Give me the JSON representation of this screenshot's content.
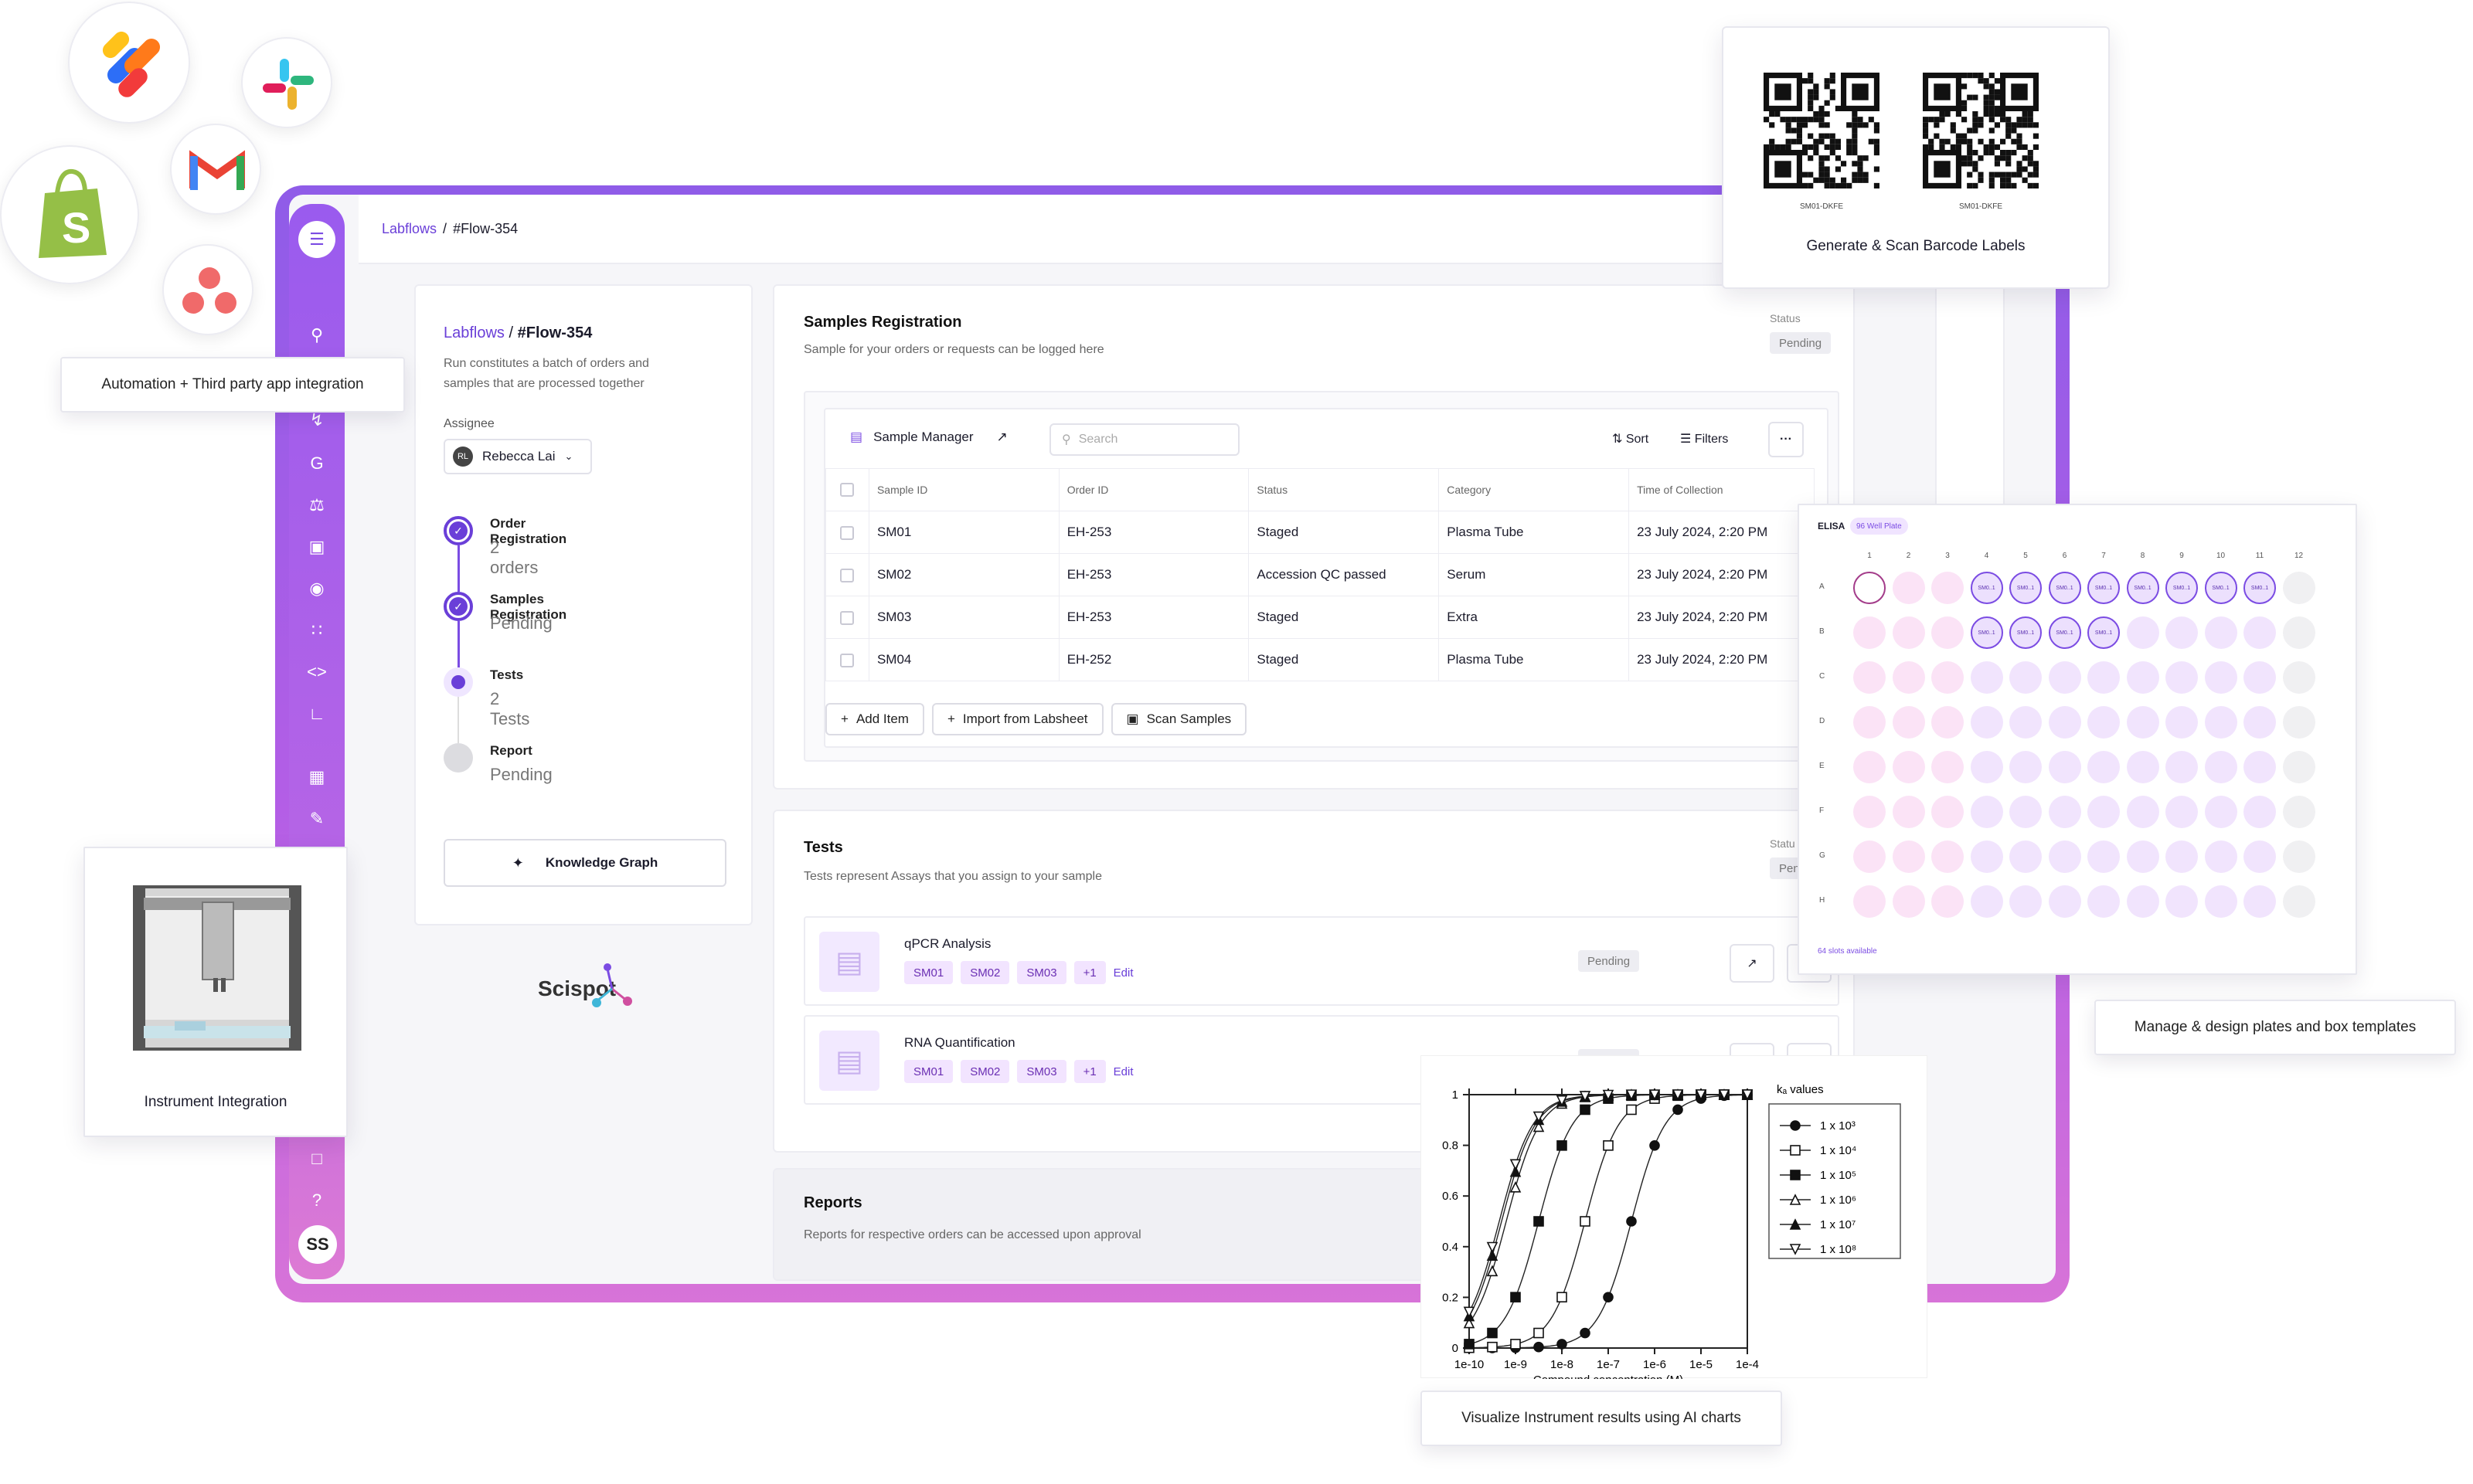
{
  "breadcrumb": {
    "root": "Labflows",
    "sep": "/",
    "current": "#Flow-354"
  },
  "flow": {
    "root": "Labflows",
    "sep": "/",
    "title": "#Flow-354",
    "description_1": "Run constitutes a batch of orders and",
    "description_2": "samples that are processed together",
    "assignee_label": "Assignee",
    "assignee_initials": "RL",
    "assignee_name": "Rebecca Lai",
    "steps": [
      {
        "title": "Order Registration",
        "status": "2 orders"
      },
      {
        "title": "Samples Registration",
        "status": "Pending"
      },
      {
        "title": "Tests",
        "status": "2 Tests"
      },
      {
        "title": "Report",
        "status": "Pending"
      }
    ],
    "knowledge_graph": "Knowledge Graph",
    "brand": "Scispot"
  },
  "samples": {
    "title": "Samples Registration",
    "subtitle": "Sample for your orders or requests can be logged here",
    "status_label": "Status",
    "status_value": "Pending",
    "manager_label": "Sample Manager",
    "search_placeholder": "Search",
    "sort": "Sort",
    "filters": "Filters",
    "more": "···",
    "columns": [
      "Sample ID",
      "Order ID",
      "Status",
      "Category",
      "Time of Collection"
    ],
    "rows": [
      [
        "SM01",
        "EH-253",
        "Staged",
        "Plasma Tube",
        "23 July 2024, 2:20 PM"
      ],
      [
        "SM02",
        "EH-253",
        "Accession QC passed",
        "Serum",
        "23 July 2024, 2:20 PM"
      ],
      [
        "SM03",
        "EH-253",
        "Staged",
        "Extra",
        "23 July 2024, 2:20 PM"
      ],
      [
        "SM04",
        "EH-252",
        "Staged",
        "Plasma Tube",
        "23 July 2024, 2:20 PM"
      ]
    ],
    "add_item": "Add Item",
    "import": "Import from Labsheet",
    "scan": "Scan Samples"
  },
  "tests": {
    "title": "Tests",
    "subtitle": "Tests represent Assays that you assign to your sample",
    "status_label": "Statu",
    "status_value": "Pen",
    "items": [
      {
        "name": "qPCR Analysis",
        "chips": [
          "SM01",
          "SM02",
          "SM03",
          "+1"
        ],
        "edit": "Edit",
        "status": "Pending"
      },
      {
        "name": "RNA Quantification",
        "chips": [
          "SM01",
          "SM02",
          "SM03",
          "+1"
        ],
        "edit": "Edit",
        "status": "Pending"
      }
    ]
  },
  "reports": {
    "title": "Reports",
    "subtitle": "Reports for respective orders can be accessed upon approval"
  },
  "rail": {
    "avatar": "SS"
  },
  "callouts": {
    "automation": "Automation + Third party app integration",
    "barcode": "Generate & Scan Barcode Labels",
    "barcode_left": "SM01-DKFE",
    "barcode_right": "SM01-DKFE",
    "plates": "Manage & design plates and box templates",
    "instrument": "Instrument Integration",
    "charts": "Visualize Instrument results using AI charts"
  },
  "plate": {
    "title": "ELISA",
    "tag": "96 Well Plate",
    "cols": [
      "1",
      "2",
      "3",
      "4",
      "5",
      "6",
      "7",
      "8",
      "9",
      "10",
      "11",
      "12"
    ],
    "rows": [
      "A",
      "B",
      "C",
      "D",
      "E",
      "F",
      "G",
      "H"
    ],
    "filled_label": "SM0..1",
    "footer": "64 slots available"
  },
  "apps": [
    "zapier-like-icon",
    "slack-icon",
    "gmail-icon",
    "shopify-icon",
    "asana-icon"
  ],
  "chart_data": {
    "type": "line",
    "title": "",
    "xlabel": "Compound concentration (M)",
    "ylabel": "",
    "x_ticks": [
      "1e-10",
      "1e-9",
      "1e-8",
      "1e-7",
      "1e-6",
      "1e-5",
      "1e-4"
    ],
    "y_ticks": [
      "0",
      "0.2",
      "0.4",
      "0.6",
      "0.8",
      "1"
    ],
    "xlim": [
      -10,
      -4
    ],
    "ylim": [
      0,
      1
    ],
    "x_scale": "log",
    "legend_title": "kₐ values",
    "legend_placement": "right",
    "series": [
      {
        "name": "1 x 10³",
        "marker": "filled-circle",
        "ec50_log": -6.5
      },
      {
        "name": "1 x 10⁴",
        "marker": "open-square",
        "ec50_log": -7.5
      },
      {
        "name": "1 x 10⁵",
        "marker": "filled-square",
        "ec50_log": -8.5
      },
      {
        "name": "1 x 10⁶",
        "marker": "open-triangle",
        "ec50_log": -9.2
      },
      {
        "name": "1 x 10⁷",
        "marker": "filled-triangle",
        "ec50_log": -9.3
      },
      {
        "name": "1 x 10⁸",
        "marker": "open-triangle-down",
        "ec50_log": -9.35
      }
    ]
  }
}
